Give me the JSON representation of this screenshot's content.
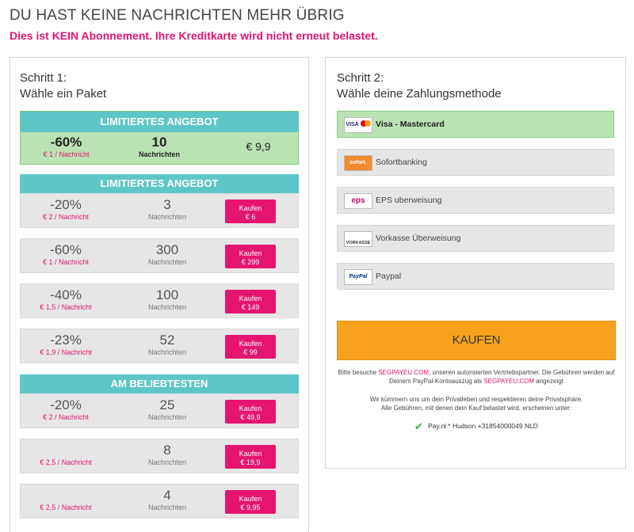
{
  "header": {
    "title": "DU HAST KEINE NACHRICHTEN MEHR ÜBRIG",
    "subtitle": "Dies ist KEIN Abonnement. Ihre Kreditkarte wird nicht erneut belastet."
  },
  "step1": {
    "number": "Schritt 1:",
    "title": "Wähle ein Paket",
    "featured": {
      "header": "LIMITIERTES ANGEBOT",
      "discount": "-60%",
      "unit_price": "€ 1 / Nachricht",
      "count": "10",
      "count_label": "Nachrichten",
      "price": "€ 9,9"
    },
    "groups": [
      {
        "header": "LIMITIERTES ANGEBOT",
        "packages": [
          {
            "discount": "-20%",
            "unit_price": "€ 2 / Nachricht",
            "count": "3",
            "count_label": "Nachrichten",
            "buy_label": "Kaufen",
            "price": "€ 6"
          },
          {
            "discount": "-60%",
            "unit_price": "€ 1 / Nachricht",
            "count": "300",
            "count_label": "Nachrichten",
            "buy_label": "Kaufen",
            "price": "€ 299"
          },
          {
            "discount": "-40%",
            "unit_price": "€ 1,5 / Nachricht",
            "count": "100",
            "count_label": "Nachrichten",
            "buy_label": "Kaufen",
            "price": "€ 149"
          },
          {
            "discount": "-23%",
            "unit_price": "€ 1,9 / Nachricht",
            "count": "52",
            "count_label": "Nachrichten",
            "buy_label": "Kaufen",
            "price": "€ 99"
          }
        ]
      },
      {
        "header": "AM BELIEBTESTEN",
        "packages": [
          {
            "discount": "-20%",
            "unit_price": "€ 2 / Nachricht",
            "count": "25",
            "count_label": "Nachrichten",
            "buy_label": "Kaufen",
            "price": "€ 49,9"
          },
          {
            "discount": "",
            "unit_price": "€ 2,5 / Nachricht",
            "count": "8",
            "count_label": "Nachrichten",
            "buy_label": "Kaufen",
            "price": "€ 19,9"
          },
          {
            "discount": "",
            "unit_price": "€ 2,5 / Nachricht",
            "count": "4",
            "count_label": "Nachrichten",
            "buy_label": "Kaufen",
            "price": "€ 9,95"
          }
        ]
      }
    ]
  },
  "step2": {
    "number": "Schritt 2:",
    "title": "Wähle deine Zahlungsmethode",
    "methods": [
      {
        "label": "Visa - Mastercard",
        "logo": "VISA",
        "icon": "visa-mastercard-icon",
        "selected": true
      },
      {
        "label": "Sofortbanking",
        "logo": "sofort.",
        "icon": "sofort-icon",
        "selected": false
      },
      {
        "label": "EPS uberweisung",
        "logo": "eps",
        "icon": "eps-icon",
        "selected": false
      },
      {
        "label": "Vorkasse Überweisung",
        "logo": "VORKASSE",
        "icon": "vorkasse-icon",
        "selected": false
      },
      {
        "label": "Paypal",
        "logo": "PayPal",
        "icon": "paypal-icon",
        "selected": false
      }
    ],
    "buy_button": "KAUFEN",
    "info1_pre": "Bitte besuche ",
    "info1_link": "SEGPAYEU.COM",
    "info1_mid": ", unseren autorisierten Vertriebspartner. Die Gebühren werden auf Deinem PayPal-Kontoauszug als ",
    "info1_link2": "SEGPAYEU.COM",
    "info1_post": " angezeigt",
    "info2_line1": "Wir kümmern uns um dein Privatleben und respektieren deine Privatsphäre.",
    "info2_line2": "Alle Gebühren, mit denen dein Kauf belastet wird, erscheinen unter:",
    "merchant": "Pay.nl * Hudson +31854000049 NLD"
  },
  "colors": {
    "accent": "#e3146e",
    "teal": "#5ec6c8",
    "selected_green": "#b9e3b2",
    "buy_orange": "#f7a21c"
  }
}
